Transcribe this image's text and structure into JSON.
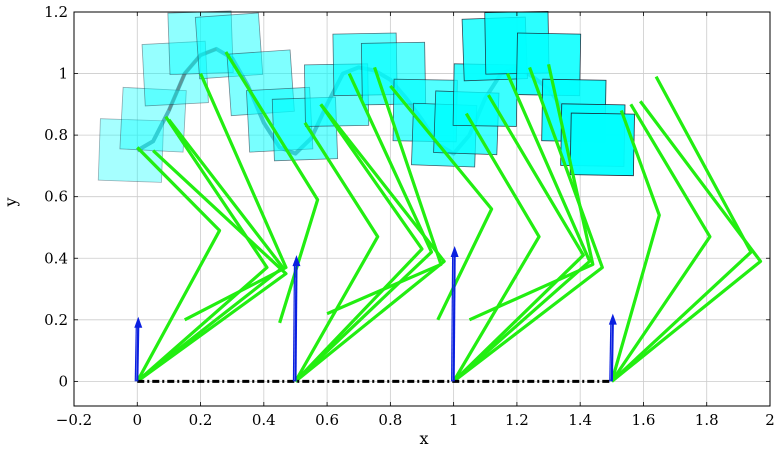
{
  "chart_data": {
    "type": "line",
    "title": "",
    "xlabel": "x",
    "ylabel": "y",
    "xlim": [
      -0.2,
      2.0
    ],
    "ylim": [
      -0.08,
      1.2
    ],
    "x_ticks": [
      -0.2,
      0,
      0.2,
      0.4,
      0.6,
      0.8,
      1,
      1.2,
      1.4,
      1.6,
      1.8,
      2
    ],
    "x_tick_labels": [
      "−0.2",
      "0",
      "0.2",
      "0.4",
      "0.6",
      "0.8",
      "1",
      "1.2",
      "1.4",
      "1.6",
      "1.8",
      "2"
    ],
    "y_ticks": [
      0,
      0.2,
      0.4,
      0.6,
      0.8,
      1,
      1.2
    ],
    "y_tick_labels": [
      "0",
      "0.2",
      "0.4",
      "0.6",
      "0.8",
      "1",
      "1.2"
    ],
    "grid": true,
    "ground_line": {
      "x": [
        0,
        1.5
      ],
      "y": [
        0,
        0
      ]
    },
    "trajectory": {
      "x": [
        0.0,
        0.05,
        0.1,
        0.15,
        0.2,
        0.25,
        0.3,
        0.35,
        0.4,
        0.45,
        0.5,
        0.55,
        0.6,
        0.65,
        0.7,
        0.75,
        0.8,
        0.85,
        0.9,
        0.95,
        1.0,
        1.05,
        1.1,
        1.15,
        1.2,
        1.25,
        1.3,
        1.35,
        1.4
      ],
      "y": [
        0.75,
        0.78,
        0.88,
        1.0,
        1.06,
        1.08,
        1.05,
        0.96,
        0.84,
        0.76,
        0.74,
        0.79,
        0.9,
        1.0,
        1.02,
        1.01,
        0.98,
        0.92,
        0.85,
        0.77,
        0.74,
        0.8,
        0.92,
        1.0,
        1.02,
        0.99,
        0.95,
        0.88,
        0.81
      ]
    },
    "force_arrows": [
      {
        "x": 0.0,
        "y0": 0.0,
        "y1": 0.21
      },
      {
        "x": 0.5,
        "y0": 0.0,
        "y1": 0.41
      },
      {
        "x": 1.0,
        "y0": 0.0,
        "y1": 0.44
      },
      {
        "x": 1.5,
        "y0": 0.0,
        "y1": 0.22
      }
    ],
    "legs": [
      {
        "points": [
          [
            0.0,
            0.0
          ],
          [
            0.26,
            0.49
          ],
          [
            0.0,
            0.76
          ]
        ]
      },
      {
        "points": [
          [
            0.0,
            0.0
          ],
          [
            0.41,
            0.37
          ],
          [
            0.09,
            0.86
          ]
        ]
      },
      {
        "points": [
          [
            0.0,
            0.0
          ],
          [
            0.46,
            0.37
          ],
          [
            0.1,
            0.85
          ]
        ]
      },
      {
        "points": [
          [
            0.0,
            0.0
          ],
          [
            0.47,
            0.35
          ],
          [
            0.05,
            0.75
          ]
        ]
      },
      {
        "points": [
          [
            0.15,
            0.2
          ],
          [
            0.47,
            0.37
          ],
          [
            0.2,
            1.0
          ]
        ]
      },
      {
        "points": [
          [
            0.45,
            0.19
          ],
          [
            0.57,
            0.59
          ],
          [
            0.28,
            1.07
          ]
        ]
      },
      {
        "points": [
          [
            0.5,
            0.0
          ],
          [
            0.76,
            0.47
          ],
          [
            0.53,
            0.84
          ]
        ]
      },
      {
        "points": [
          [
            0.5,
            0.0
          ],
          [
            0.9,
            0.43
          ],
          [
            0.58,
            0.9
          ]
        ]
      },
      {
        "points": [
          [
            0.5,
            0.0
          ],
          [
            0.93,
            0.42
          ],
          [
            0.67,
            1.0
          ]
        ]
      },
      {
        "points": [
          [
            0.5,
            0.0
          ],
          [
            0.97,
            0.39
          ],
          [
            0.58,
            0.9
          ]
        ]
      },
      {
        "points": [
          [
            0.6,
            0.22
          ],
          [
            0.96,
            0.38
          ],
          [
            0.75,
            1.02
          ]
        ]
      },
      {
        "points": [
          [
            0.95,
            0.2
          ],
          [
            1.12,
            0.56
          ],
          [
            0.8,
            0.96
          ]
        ]
      },
      {
        "points": [
          [
            1.0,
            0.0
          ],
          [
            1.27,
            0.47
          ],
          [
            1.04,
            0.87
          ]
        ]
      },
      {
        "points": [
          [
            1.0,
            0.0
          ],
          [
            1.41,
            0.41
          ],
          [
            1.11,
            0.93
          ]
        ]
      },
      {
        "points": [
          [
            1.0,
            0.0
          ],
          [
            1.43,
            0.39
          ],
          [
            1.17,
            1.0
          ]
        ]
      },
      {
        "points": [
          [
            1.0,
            0.0
          ],
          [
            1.47,
            0.37
          ],
          [
            1.24,
            1.02
          ]
        ]
      },
      {
        "points": [
          [
            1.05,
            0.2
          ],
          [
            1.44,
            0.38
          ],
          [
            1.3,
            1.03
          ]
        ]
      },
      {
        "points": [
          [
            1.5,
            0.0
          ],
          [
            1.65,
            0.54
          ],
          [
            1.53,
            0.88
          ]
        ]
      },
      {
        "points": [
          [
            1.5,
            0.0
          ],
          [
            1.81,
            0.47
          ],
          [
            1.56,
            0.9
          ]
        ]
      },
      {
        "points": [
          [
            1.5,
            0.0
          ],
          [
            1.94,
            0.42
          ],
          [
            1.64,
            0.99
          ]
        ]
      },
      {
        "points": [
          [
            1.5,
            0.0
          ],
          [
            1.97,
            0.39
          ],
          [
            1.59,
            0.91
          ]
        ]
      }
    ],
    "bodies": [
      {
        "cx": -0.02,
        "cy": 0.75,
        "w": 0.2,
        "h": 0.2,
        "angle": -2
      },
      {
        "cx": 0.05,
        "cy": 0.85,
        "w": 0.2,
        "h": 0.2,
        "angle": -3
      },
      {
        "cx": 0.12,
        "cy": 1.0,
        "w": 0.2,
        "h": 0.2,
        "angle": 3
      },
      {
        "cx": 0.2,
        "cy": 1.1,
        "w": 0.2,
        "h": 0.2,
        "angle": 2
      },
      {
        "cx": 0.29,
        "cy": 1.09,
        "w": 0.2,
        "h": 0.2,
        "angle": 4
      },
      {
        "cx": 0.39,
        "cy": 0.97,
        "w": 0.2,
        "h": 0.2,
        "angle": 4
      },
      {
        "cx": 0.45,
        "cy": 0.85,
        "w": 0.2,
        "h": 0.2,
        "angle": 3
      },
      {
        "cx": 0.53,
        "cy": 0.82,
        "w": 0.2,
        "h": 0.2,
        "angle": 2
      },
      {
        "cx": 0.63,
        "cy": 0.93,
        "w": 0.2,
        "h": 0.2,
        "angle": 1
      },
      {
        "cx": 0.72,
        "cy": 1.03,
        "w": 0.2,
        "h": 0.2,
        "angle": 1
      },
      {
        "cx": 0.81,
        "cy": 1.0,
        "w": 0.2,
        "h": 0.2,
        "angle": 1
      },
      {
        "cx": 0.91,
        "cy": 0.88,
        "w": 0.2,
        "h": 0.2,
        "angle": -1
      },
      {
        "cx": 0.97,
        "cy": 0.8,
        "w": 0.2,
        "h": 0.2,
        "angle": -2
      },
      {
        "cx": 1.04,
        "cy": 0.84,
        "w": 0.2,
        "h": 0.2,
        "angle": -2
      },
      {
        "cx": 1.1,
        "cy": 0.93,
        "w": 0.2,
        "h": 0.2,
        "angle": -1
      },
      {
        "cx": 1.13,
        "cy": 1.08,
        "w": 0.2,
        "h": 0.2,
        "angle": 2
      },
      {
        "cx": 1.2,
        "cy": 1.1,
        "w": 0.2,
        "h": 0.2,
        "angle": 1
      },
      {
        "cx": 1.3,
        "cy": 1.03,
        "w": 0.2,
        "h": 0.2,
        "angle": -1
      },
      {
        "cx": 1.38,
        "cy": 0.88,
        "w": 0.2,
        "h": 0.2,
        "angle": -1
      },
      {
        "cx": 1.44,
        "cy": 0.8,
        "w": 0.2,
        "h": 0.2,
        "angle": -1
      },
      {
        "cx": 1.47,
        "cy": 0.77,
        "w": 0.2,
        "h": 0.2,
        "angle": -1
      }
    ],
    "colors": {
      "leg": "#22ee11",
      "arrow": "#0a1fe0",
      "body_fill": "#00ffff",
      "body_stroke": "#1a1a2a",
      "trajectory": "#7a8a99",
      "trajectory_segment": "#aa3333",
      "ground": "#000000",
      "grid": "#cccccc"
    }
  }
}
